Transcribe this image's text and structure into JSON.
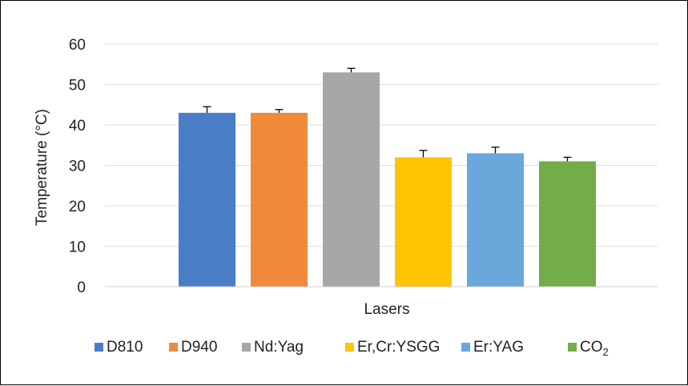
{
  "chart_data": {
    "type": "bar",
    "title": "",
    "xlabel": "Lasers",
    "ylabel": "Temperature (°C)",
    "ylim": [
      0,
      60
    ],
    "yticks": [
      "0",
      "10",
      "20",
      "30",
      "40",
      "50",
      "60"
    ],
    "grid": true,
    "legend_position": "bottom",
    "series": [
      {
        "name": "D810",
        "value": 43,
        "error": 1.5,
        "color": "#4A7EC9"
      },
      {
        "name": "D940",
        "value": 43,
        "error": 0.8,
        "color": "#EE8A3A"
      },
      {
        "name": "Nd:Yag",
        "value": 53,
        "error": 1.0,
        "color": "#A7A7A7"
      },
      {
        "name": "Er,Cr:YSGG",
        "value": 32,
        "error": 1.7,
        "color": "#FFC402"
      },
      {
        "name": "Er:YAG",
        "value": 33,
        "error": 1.5,
        "color": "#6AA7DB"
      },
      {
        "name": "CO",
        "name_subscript": "2",
        "value": 31,
        "error": 1.0,
        "color": "#73AC48"
      }
    ]
  }
}
